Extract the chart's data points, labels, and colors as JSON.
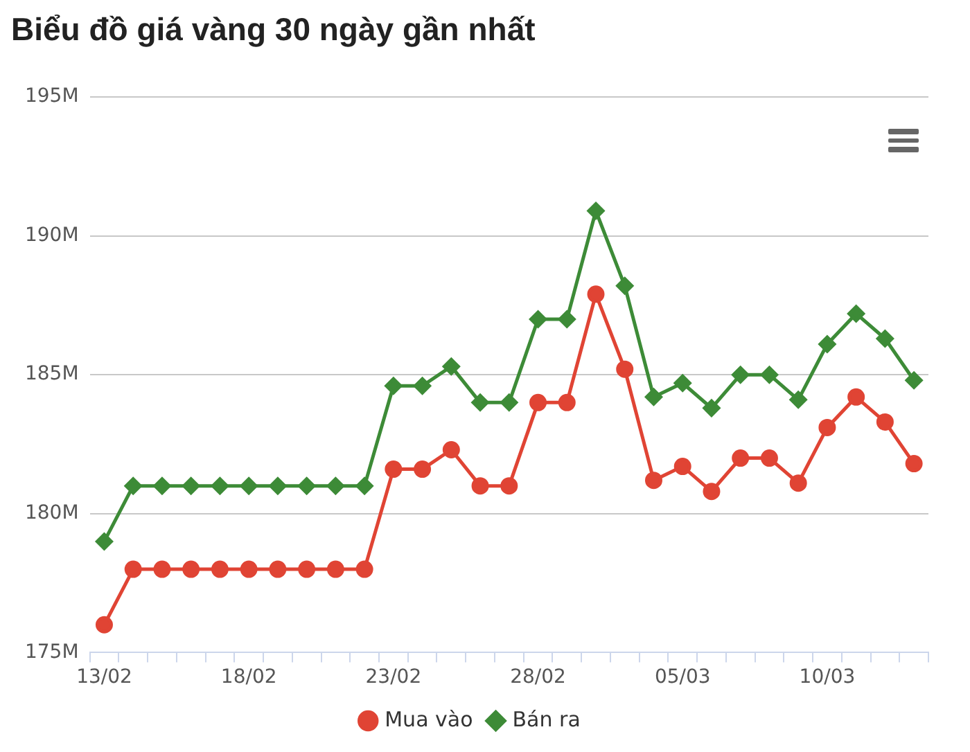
{
  "chart_data": {
    "type": "line",
    "title": "Biểu đồ giá vàng 30 ngày gần nhất",
    "categories": [
      "13/02",
      null,
      null,
      null,
      null,
      "18/02",
      null,
      null,
      null,
      null,
      "23/02",
      null,
      null,
      null,
      null,
      "28/02",
      null,
      null,
      null,
      null,
      "05/03",
      null,
      null,
      null,
      null,
      "10/03",
      null,
      null,
      null
    ],
    "series": [
      {
        "name": "Mua vào",
        "color": "#e04434",
        "marker": "circle",
        "values": [
          176,
          178,
          178,
          178,
          178,
          178,
          178,
          178,
          178,
          178,
          181.6,
          181.6,
          182.3,
          181,
          181,
          184,
          184,
          187.9,
          185.2,
          181.2,
          181.7,
          180.8,
          182,
          182,
          181.1,
          183.1,
          184.2,
          183.3,
          181.8
        ]
      },
      {
        "name": "Bán ra",
        "color": "#3d8b37",
        "marker": "diamond",
        "values": [
          179,
          181,
          181,
          181,
          181,
          181,
          181,
          181,
          181,
          181,
          184.6,
          184.6,
          185.3,
          184,
          184,
          187,
          187,
          190.9,
          188.2,
          184.2,
          184.7,
          183.8,
          185,
          185,
          184.1,
          186.1,
          187.2,
          186.3,
          184.8
        ]
      }
    ],
    "ylim": [
      175,
      195
    ],
    "yticks": [
      {
        "value": 175,
        "label": "175M"
      },
      {
        "value": 180,
        "label": "180M"
      },
      {
        "value": 185,
        "label": "185M"
      },
      {
        "value": 190,
        "label": "190M"
      },
      {
        "value": 195,
        "label": "195M"
      }
    ],
    "grid": "y",
    "legend": "bottom",
    "line_style": "solid"
  }
}
